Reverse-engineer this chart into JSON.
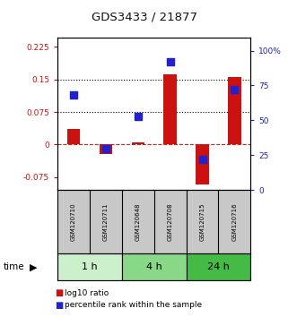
{
  "title": "GDS3433 / 21877",
  "samples": [
    "GSM120710",
    "GSM120711",
    "GSM120648",
    "GSM120708",
    "GSM120715",
    "GSM120716"
  ],
  "log10_ratio": [
    0.035,
    -0.022,
    0.005,
    0.162,
    -0.092,
    0.155
  ],
  "percentile_rank": [
    0.68,
    0.3,
    0.53,
    0.92,
    0.22,
    0.72
  ],
  "groups": [
    {
      "label": "1 h",
      "start": 0,
      "end": 2,
      "color": "#ccf0cc"
    },
    {
      "label": "4 h",
      "start": 2,
      "end": 4,
      "color": "#88d888"
    },
    {
      "label": "24 h",
      "start": 4,
      "end": 6,
      "color": "#44bb44"
    }
  ],
  "ylim_left": [
    -0.105,
    0.245
  ],
  "ylim_right": [
    0.0,
    1.09
  ],
  "yticks_left": [
    -0.075,
    0,
    0.075,
    0.15,
    0.225
  ],
  "ytick_labels_left": [
    "-0.075",
    "0",
    "0.075",
    "0.15",
    "0.225"
  ],
  "yticks_right": [
    0,
    0.25,
    0.5,
    0.75,
    1.0
  ],
  "ytick_labels_right": [
    "0",
    "25",
    "50",
    "75",
    "100%"
  ],
  "hlines": [
    0.075,
    0.15
  ],
  "bar_color": "#cc1111",
  "dot_color": "#2222cc",
  "zero_line_color": "#cc2222",
  "background_plot": "#ffffff",
  "background_sample": "#c8c8c8",
  "title_color": "#111111",
  "left_axis_color": "#cc1111",
  "right_axis_color": "#2222bb",
  "bar_width": 0.4,
  "dot_size": 28
}
